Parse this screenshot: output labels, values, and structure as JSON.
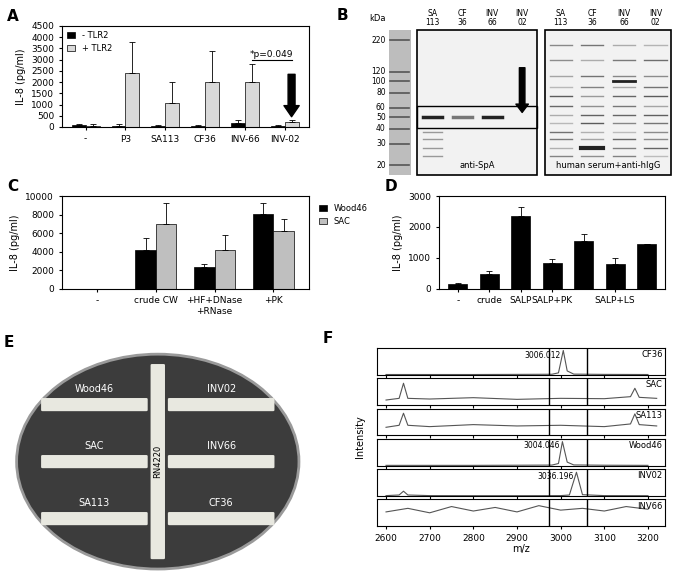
{
  "chart_data": [
    {
      "type": "bar",
      "title": "A",
      "ylabel": "IL-8 (pg/ml)",
      "categories": [
        "-",
        "P3",
        "SA113",
        "CF36",
        "INV-66",
        "INV-02"
      ],
      "series": [
        {
          "name": "- TLR2",
          "color": "#000000",
          "values": [
            80,
            60,
            40,
            40,
            180,
            40
          ],
          "errors": [
            60,
            60,
            30,
            30,
            120,
            40
          ]
        },
        {
          "name": "+ TLR2",
          "color": "#d9d9d9",
          "values": [
            60,
            2400,
            1050,
            2000,
            2000,
            200
          ],
          "errors": [
            60,
            1400,
            950,
            1400,
            800,
            120
          ]
        }
      ],
      "ylim": [
        0,
        4500
      ],
      "yticks": [
        0,
        500,
        1000,
        1500,
        2000,
        2500,
        3000,
        3500,
        4000,
        4500
      ],
      "legend": "upper left",
      "annotation": {
        "text": "*p=0.049",
        "between": [
          "INV-66",
          "INV-02"
        ]
      }
    },
    {
      "type": "bar",
      "title": "C",
      "ylabel": "IL-8 (pg/ml)",
      "categories": [
        "-",
        "crude CW",
        "+HF+DNase\n+RNase",
        "+PK"
      ],
      "series": [
        {
          "name": "Wood46",
          "color": "#000000",
          "values": [
            0,
            4200,
            2300,
            8100
          ],
          "errors": [
            0,
            1300,
            400,
            1200
          ]
        },
        {
          "name": "SAC",
          "color": "#bfbfbf",
          "values": [
            0,
            7000,
            4200,
            6200
          ],
          "errors": [
            0,
            2300,
            1600,
            1300
          ]
        }
      ],
      "ylim": [
        0,
        10000
      ],
      "yticks": [
        0,
        2000,
        4000,
        6000,
        8000,
        10000
      ],
      "legend": "right"
    },
    {
      "type": "bar",
      "title": "D",
      "ylabel": "IL-8 (pg/ml)",
      "categories": [
        "-",
        "crude",
        "SALP",
        "SALP+PK",
        null,
        "SALP+LS",
        null
      ],
      "values": [
        150,
        480,
        2350,
        820,
        1530,
        800,
        1430
      ],
      "errors": [
        20,
        80,
        300,
        130,
        230,
        200,
        30
      ],
      "color": "#000000",
      "ylim": [
        0,
        3000
      ],
      "yticks": [
        0,
        1000,
        2000,
        3000
      ]
    },
    {
      "type": "line",
      "title": "F",
      "xlabel": "m/z",
      "ylabel": "Intensity",
      "xlim": [
        2580,
        3240
      ],
      "xticks": [
        2600,
        2700,
        2800,
        2900,
        3000,
        3100,
        3200
      ],
      "tick_labels": "x",
      "series": [
        {
          "name": "CF36",
          "color": "#555555",
          "x": [
            2600,
            2700,
            2800,
            2900,
            2980,
            2995,
            3006.012,
            3015,
            3030,
            3100,
            3200
          ],
          "values": [
            40,
            40,
            40,
            60,
            80,
            300,
            3800,
            600,
            100,
            60,
            40
          ],
          "ylim": [
            0,
            4200
          ],
          "peak": 3006.012
        },
        {
          "name": "SAC",
          "color": "#555555",
          "x": [
            2600,
            2630,
            2640,
            2650,
            2700,
            2800,
            2900,
            3000,
            3100,
            3160,
            3170,
            3180,
            3220
          ],
          "values": [
            150,
            200,
            650,
            200,
            180,
            220,
            170,
            200,
            190,
            250,
            500,
            230,
            200
          ],
          "ylim": [
            0,
            800
          ]
        },
        {
          "name": "SA113",
          "color": "#555555",
          "x": [
            2600,
            2630,
            2640,
            2650,
            2700,
            2800,
            2900,
            3000,
            3100,
            3160,
            3170,
            3180,
            3220
          ],
          "values": [
            120,
            150,
            330,
            150,
            130,
            160,
            140,
            150,
            130,
            170,
            320,
            160,
            140
          ],
          "ylim": [
            0,
            400
          ]
        },
        {
          "name": "Wood46",
          "color": "#555555",
          "x": [
            2600,
            2700,
            2800,
            2900,
            2980,
            2995,
            3004.046,
            3015,
            3030,
            3100,
            3200
          ],
          "values": [
            40,
            40,
            40,
            60,
            80,
            300,
            3400,
            500,
            100,
            60,
            40
          ],
          "ylim": [
            0,
            3800
          ],
          "peak": 3004.046
        },
        {
          "name": "INV02",
          "color": "#555555",
          "x": [
            2600,
            2630,
            2640,
            2650,
            2700,
            2800,
            2900,
            3000,
            3020,
            3036.196,
            3050,
            3100,
            3200
          ],
          "values": [
            100,
            300,
            1500,
            300,
            100,
            80,
            80,
            100,
            300,
            7500,
            400,
            100,
            80
          ],
          "ylim": [
            0,
            8500
          ],
          "peak": 3036.196
        },
        {
          "name": "INV66",
          "color": "#555555",
          "x": [
            2600,
            2650,
            2700,
            2750,
            2800,
            2850,
            2900,
            2950,
            3000,
            3050,
            3100,
            3150,
            3200
          ],
          "values": [
            160,
            200,
            150,
            220,
            170,
            210,
            160,
            230,
            180,
            200,
            170,
            220,
            190
          ],
          "ylim": [
            0,
            300
          ]
        }
      ]
    }
  ],
  "blot": {
    "title": "B",
    "unit": "kDa",
    "markers": [
      220,
      120,
      100,
      80,
      60,
      50,
      40,
      30,
      20
    ],
    "lanes": [
      "SA\n113",
      "CF\n36",
      "INV\n66",
      "INV\n02"
    ],
    "panels": [
      "anti-SpA",
      "human serum+anti-hIgG"
    ]
  },
  "plate": {
    "title": "E",
    "center": "RN4220",
    "left": [
      "Wood46",
      "SAC",
      "SA113"
    ],
    "right": [
      "INV02",
      "INV66",
      "CF36"
    ]
  }
}
